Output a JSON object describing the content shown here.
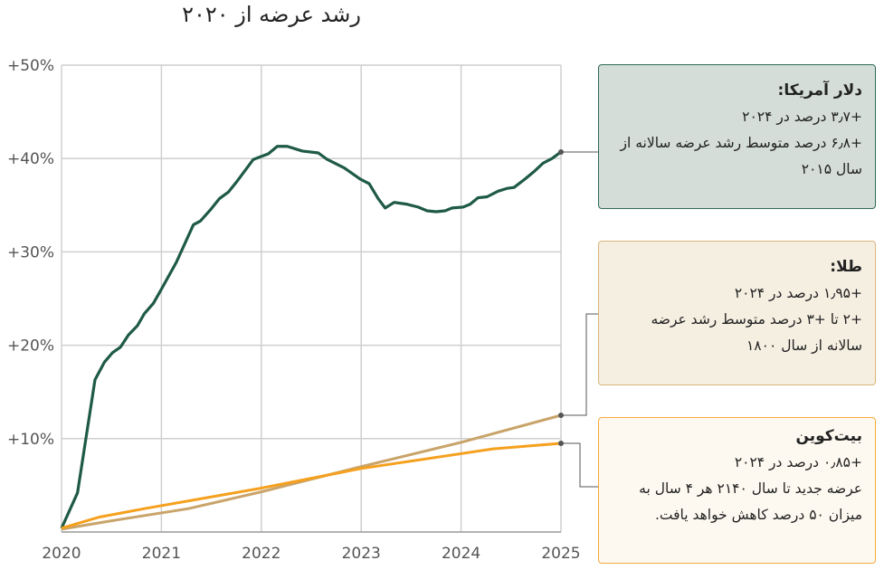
{
  "chart_data": {
    "type": "line",
    "title": "رشد عرضه از ۲۰۲۰",
    "xlabel": "",
    "ylabel": "",
    "xlim": [
      2020,
      2025
    ],
    "ylim": [
      0,
      50
    ],
    "x_ticks": [
      "2020",
      "2021",
      "2022",
      "2023",
      "2024",
      "2025"
    ],
    "y_ticks": [
      "+10%",
      "+20%",
      "+30%",
      "+40%",
      "+50%"
    ],
    "grid": true,
    "colors": {
      "usd": "#1e5a44",
      "gold": "#c9a46a",
      "btc": "#f5a01e"
    },
    "series": [
      {
        "name": "usd",
        "points": [
          [
            2020,
            0.4
          ],
          [
            2020.16,
            4.2
          ],
          [
            2020.335,
            16.3
          ],
          [
            2020.43,
            18.2
          ],
          [
            2020.51,
            19.2
          ],
          [
            2020.59,
            19.8
          ],
          [
            2020.67,
            21.1
          ],
          [
            2020.76,
            22.1
          ],
          [
            2020.83,
            23.4
          ],
          [
            2020.92,
            24.5
          ],
          [
            2021.01,
            26.2
          ],
          [
            2021.15,
            28.9
          ],
          [
            2021.32,
            32.9
          ],
          [
            2021.39,
            33.3
          ],
          [
            2021.49,
            34.5
          ],
          [
            2021.58,
            35.7
          ],
          [
            2021.67,
            36.4
          ],
          [
            2021.76,
            37.6
          ],
          [
            2021.92,
            39.9
          ],
          [
            2022.07,
            40.5
          ],
          [
            2022.16,
            41.3
          ],
          [
            2022.26,
            41.3
          ],
          [
            2022.41,
            40.8
          ],
          [
            2022.57,
            40.6
          ],
          [
            2022.66,
            39.9
          ],
          [
            2022.83,
            39.0
          ],
          [
            2022.99,
            37.8
          ],
          [
            2023.08,
            37.3
          ],
          [
            2023.17,
            35.7
          ],
          [
            2023.24,
            34.7
          ],
          [
            2023.33,
            35.3
          ],
          [
            2023.46,
            35.1
          ],
          [
            2023.57,
            34.8
          ],
          [
            2023.66,
            34.4
          ],
          [
            2023.75,
            34.3
          ],
          [
            2023.84,
            34.4
          ],
          [
            2023.91,
            34.7
          ],
          [
            2024.02,
            34.8
          ],
          [
            2024.09,
            35.1
          ],
          [
            2024.17,
            35.8
          ],
          [
            2024.26,
            35.9
          ],
          [
            2024.37,
            36.5
          ],
          [
            2024.46,
            36.8
          ],
          [
            2024.53,
            36.9
          ],
          [
            2024.64,
            37.8
          ],
          [
            2024.73,
            38.6
          ],
          [
            2024.82,
            39.5
          ],
          [
            2024.91,
            40.0
          ],
          [
            2025,
            40.7
          ]
        ]
      },
      {
        "name": "gold",
        "points": [
          [
            2020,
            0.3
          ],
          [
            2020.5,
            1.2
          ],
          [
            2021.27,
            2.5
          ],
          [
            2022,
            4.3
          ],
          [
            2023,
            7.0
          ],
          [
            2024,
            9.6
          ],
          [
            2025,
            12.5
          ]
        ]
      },
      {
        "name": "btc",
        "points": [
          [
            2020,
            0.4
          ],
          [
            2020.38,
            1.6
          ],
          [
            2020.83,
            2.5
          ],
          [
            2022,
            4.7
          ],
          [
            2023,
            6.8
          ],
          [
            2024.32,
            8.9
          ],
          [
            2025,
            9.5
          ]
        ]
      }
    ],
    "annotations": {
      "usd": {
        "title": "دلار آمریکا:",
        "lines": [
          "+۳٫۷ درصد در ۲۰۲۴",
          "+۶٫۸ درصد متوسط رشد عرضه سالانه از سال ۲۰۱۵"
        ]
      },
      "gold": {
        "title": "طلا:",
        "lines": [
          "+۱٫۹۵ درصد در ۲۰۲۴",
          "+۲ تا +۳ درصد متوسط رشد عرضه سالانه از سال ۱۸۰۰"
        ]
      },
      "btc": {
        "title": "بیت‌کوین",
        "lines": [
          "+۰٫۸۵ درصد در ۲۰۲۴",
          "عرضه جدید تا سال ۲۱۴۰ هر ۴ سال به میزان ۵۰ درصد کاهش خواهد یافت."
        ]
      }
    }
  }
}
